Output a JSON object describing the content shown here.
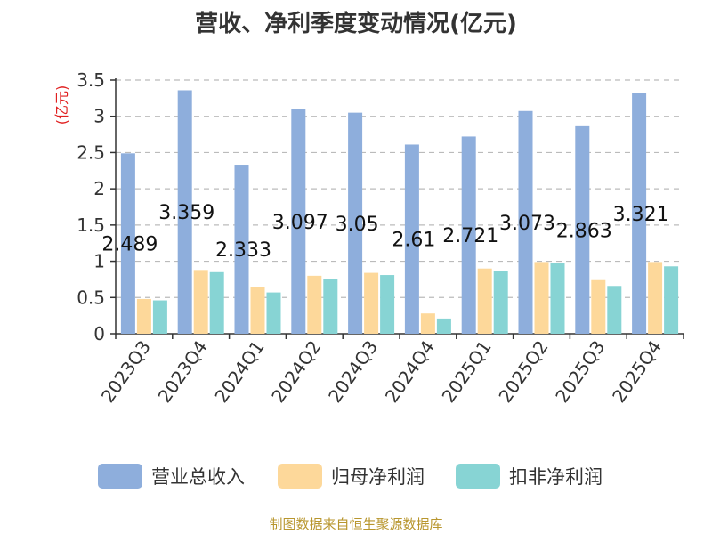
{
  "title": "营收、净利季度变动情况(亿元)",
  "footer": "制图数据来自恒生聚源数据库",
  "colors": {
    "revenue": "#8eaedc",
    "parent_profit": "#fdd89a",
    "deducted_profit": "#87d4d4",
    "ylabel": "#e02020",
    "axis": "#333333",
    "grid": "#bbbbbb"
  },
  "chart_data": {
    "type": "bar",
    "title": "营收、净利季度变动情况(亿元)",
    "ylabel": "(亿元)",
    "ylim": [
      0,
      3.5
    ],
    "yticks": [
      "0",
      "0.5",
      "1",
      "1.5",
      "2",
      "2.5",
      "3",
      "3.5"
    ],
    "grid": true,
    "legend": "bottom",
    "categories": [
      "2023Q3",
      "2023Q4",
      "2024Q1",
      "2024Q2",
      "2024Q3",
      "2024Q4",
      "2025Q1",
      "2025Q2",
      "2025Q3",
      "2025Q4"
    ],
    "series": [
      {
        "name": "营业总收入",
        "values": [
          2.489,
          3.359,
          2.333,
          3.097,
          3.05,
          2.61,
          2.721,
          3.073,
          2.863,
          3.321
        ],
        "labels": [
          "2.489",
          "3.359",
          "2.333",
          "3.097",
          "3.05",
          "2.61",
          "2.721",
          "3.073",
          "2.863",
          "3.321"
        ]
      },
      {
        "name": "归母净利润",
        "values": [
          0.48,
          0.88,
          0.65,
          0.8,
          0.84,
          0.28,
          0.9,
          0.99,
          0.74,
          0.99
        ]
      },
      {
        "name": "扣非净利润",
        "values": [
          0.46,
          0.85,
          0.57,
          0.76,
          0.81,
          0.21,
          0.87,
          0.97,
          0.66,
          0.93
        ]
      }
    ]
  }
}
